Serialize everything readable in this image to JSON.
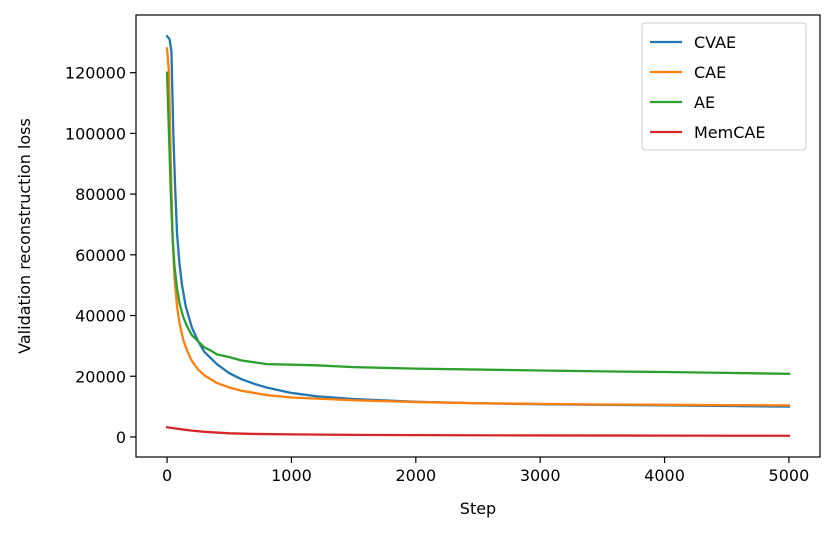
{
  "chart_data": {
    "type": "line",
    "title": "",
    "xlabel": "Step",
    "ylabel": "Validation reconstruction loss",
    "xlim": [
      -250,
      5250
    ],
    "ylim": [
      -6600,
      139000
    ],
    "xticks": [
      0,
      1000,
      2000,
      3000,
      4000,
      5000
    ],
    "yticks": [
      0,
      20000,
      40000,
      60000,
      80000,
      100000,
      120000
    ],
    "grid": false,
    "legend_position": "top-right",
    "series": [
      {
        "name": "CVAE",
        "color": "#1f77b4",
        "x": [
          0,
          20,
          35,
          50,
          65,
          80,
          100,
          120,
          150,
          200,
          250,
          300,
          400,
          500,
          600,
          700,
          800,
          1000,
          1200,
          1500,
          2000,
          2500,
          3000,
          3500,
          4000,
          4500,
          5000
        ],
        "y": [
          132000,
          131000,
          127000,
          100000,
          82000,
          67000,
          57000,
          50000,
          43000,
          36000,
          31500,
          28000,
          24000,
          21000,
          19000,
          17500,
          16300,
          14500,
          13400,
          12500,
          11600,
          11100,
          10800,
          10600,
          10400,
          10200,
          10000
        ]
      },
      {
        "name": "CAE",
        "color": "#ff7f0e",
        "x": [
          0,
          15,
          30,
          45,
          60,
          80,
          100,
          130,
          160,
          200,
          250,
          300,
          400,
          500,
          600,
          800,
          1000,
          1500,
          2000,
          2500,
          3000,
          3500,
          4000,
          4500,
          5000
        ],
        "y": [
          128000,
          120000,
          90000,
          65000,
          52000,
          43000,
          37500,
          32000,
          28500,
          25000,
          22200,
          20300,
          17800,
          16300,
          15200,
          13800,
          13000,
          12100,
          11500,
          11100,
          10900,
          10700,
          10600,
          10500,
          10400
        ]
      },
      {
        "name": "AE",
        "color": "#2ca02c",
        "x": [
          0,
          15,
          30,
          45,
          60,
          80,
          100,
          130,
          160,
          200,
          250,
          300,
          350,
          400,
          500,
          600,
          700,
          800,
          1000,
          1200,
          1500,
          2000,
          2500,
          3000,
          3500,
          4000,
          4500,
          5000
        ],
        "y": [
          120000,
          100000,
          80000,
          65000,
          56000,
          49000,
          44000,
          39500,
          36500,
          33500,
          31500,
          29500,
          28500,
          27200,
          26300,
          25200,
          24600,
          24000,
          23800,
          23600,
          23000,
          22500,
          22200,
          21900,
          21600,
          21400,
          21100,
          20800
        ]
      },
      {
        "name": "MemCAE",
        "color": "#d62728",
        "x": [
          0,
          50,
          100,
          200,
          300,
          500,
          700,
          1000,
          1500,
          2000,
          3000,
          4000,
          5000
        ],
        "y": [
          3200,
          2900,
          2600,
          2100,
          1700,
          1200,
          1000,
          850,
          700,
          600,
          500,
          450,
          400
        ]
      }
    ]
  }
}
